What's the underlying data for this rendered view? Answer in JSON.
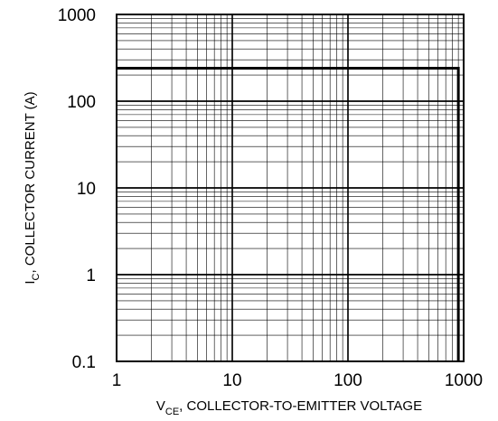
{
  "chart_data": {
    "type": "line",
    "title": "",
    "xlabel": {
      "main": "V",
      "sub": "CE",
      "rest": ", COLLECTOR-TO-EMITTER VOLTAGE"
    },
    "ylabel": {
      "main": "I",
      "sub": "C",
      "rest": ", COLLECTOR CURRENT (A)"
    },
    "x_scale": "log",
    "y_scale": "log",
    "xlim": [
      1,
      1000
    ],
    "ylim": [
      0.1,
      1000
    ],
    "x_ticks": [
      "1",
      "10",
      "100",
      "1000"
    ],
    "y_ticks": [
      "0.1",
      "1",
      "10",
      "100",
      "1000"
    ],
    "grid": true,
    "series": [
      {
        "x": [
          1,
          900,
          900
        ],
        "y": [
          240,
          240,
          0.1
        ]
      }
    ]
  }
}
